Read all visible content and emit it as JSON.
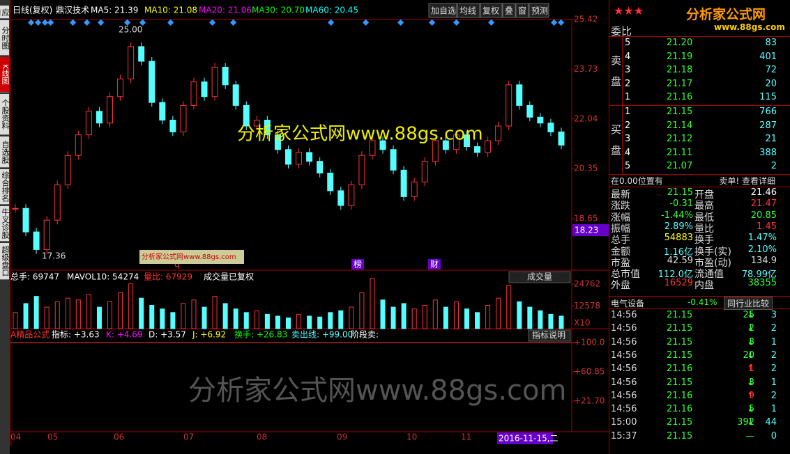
{
  "sidebar": [
    "应用",
    "分时图",
    "K线图",
    "个股资料",
    "自选股",
    "综合排名",
    "牛叉诊股",
    "超级盘口"
  ],
  "toolbar": {
    "period": "日线(复权)",
    "name": "鼎汉技术",
    "ma": [
      "MA5: 21.39",
      "MA10: 21.08",
      "MA20: 21.06",
      "MA30: 20.70",
      "MA60: 20.45"
    ],
    "buttons": [
      "加自选",
      "均线",
      "复权",
      "叠",
      "窗",
      "预测"
    ]
  },
  "price_panel": {
    "ylim": [
      16.9,
      25.42
    ],
    "yticks": [
      25.42,
      23.73,
      22.04,
      20.35,
      18.65
    ],
    "closes": [
      19.0,
      18.2,
      17.6,
      18.6,
      19.8,
      20.8,
      21.5,
      22.3,
      21.9,
      22.8,
      23.4,
      24.5,
      24.0,
      22.6,
      22.0,
      21.6,
      22.5,
      23.3,
      22.8,
      23.8,
      23.2,
      22.5,
      21.8,
      22.0,
      21.5,
      21.0,
      20.5,
      20.9,
      20.6,
      20.2,
      19.6,
      19.1,
      19.8,
      20.8,
      21.3,
      21.0,
      20.3,
      19.4,
      19.9,
      20.6,
      21.3,
      21.0,
      21.5,
      21.1,
      20.9,
      21.3,
      21.8,
      23.2,
      22.5,
      22.1,
      21.9,
      21.6,
      21.15
    ],
    "high_label": "25.00",
    "low_label": "17.36",
    "price_tag": "18.23",
    "markers": [
      "q",
      "榜",
      "财"
    ]
  },
  "watermark": "分析家公式网www.88gs.com",
  "volume_panel": {
    "header": [
      "总手: 69747",
      "MAVOL10: 54274",
      "量比: 67929",
      "成交量已复权"
    ],
    "dropdown": "成交量",
    "ylim": [
      0,
      32600
    ],
    "yticks": [
      24762,
      12578
    ],
    "unit": "X10",
    "volumes": [
      9000,
      14000,
      18000,
      12000,
      15000,
      17000,
      16000,
      19000,
      12000,
      15000,
      20000,
      25000,
      17000,
      13000,
      11000,
      9000,
      14000,
      16000,
      12000,
      18000,
      14000,
      11000,
      9000,
      10000,
      8000,
      7000,
      6000,
      8000,
      7000,
      6500,
      9000,
      10000,
      12000,
      20000,
      28000,
      16000,
      12000,
      14000,
      11000,
      13000,
      16000,
      12000,
      15000,
      11000,
      9000,
      13000,
      17000,
      24000,
      15000,
      12000,
      10000,
      8000,
      7000
    ]
  },
  "indicator_panel": {
    "header": [
      "A精品公式",
      "指标: +3.63",
      "K: +4.69",
      "D: +3.57",
      "J: +6.92",
      "换手: +26.83",
      "卖出线: +99.00",
      "阶段卖:"
    ],
    "help": "指标说明",
    "ylim": [
      -19.3,
      118.6
    ],
    "yticks": [
      {
        "value": 100,
        "label": "+100.0"
      },
      {
        "value": 60.85,
        "label": "+60.85"
      },
      {
        "value": 21.7,
        "label": "+21.70"
      }
    ]
  },
  "date_axis": {
    "months": [
      "04",
      "05",
      "06",
      "07",
      "08",
      "09",
      "10",
      "11"
    ],
    "cursor_date": "2016-11-15,二"
  },
  "logo": {
    "title": "分析家公式网",
    "url": "www.88gs.com"
  },
  "order_book": {
    "title": "委比",
    "sell_label": [
      "卖",
      "盘"
    ],
    "buy_label": [
      "买",
      "盘"
    ],
    "sell": [
      [
        "5",
        "21.20",
        "83"
      ],
      [
        "4",
        "21.19",
        "401"
      ],
      [
        "3",
        "21.18",
        "72"
      ],
      [
        "2",
        "21.17",
        "20"
      ],
      [
        "1",
        "21.16",
        "115"
      ]
    ],
    "buy": [
      [
        "1",
        "21.15",
        "766"
      ],
      [
        "2",
        "21.14",
        "287"
      ],
      [
        "3",
        "21.12",
        "21"
      ],
      [
        "4",
        "21.11",
        "388"
      ],
      [
        "5",
        "21.07",
        "2"
      ]
    ],
    "note": "在0.00位置有",
    "note_link": "卖单! 查看详细"
  },
  "stats": [
    [
      "最新",
      "21.15",
      "开盘",
      "21.46"
    ],
    [
      "涨跌",
      "-0.31",
      "最高",
      "21.47"
    ],
    [
      "涨幅",
      "-1.44%",
      "最低",
      "20.85"
    ],
    [
      "振幅",
      "2.89%",
      "量比",
      "1.45"
    ],
    [
      "总手",
      "54883",
      "换手",
      "1.47%"
    ],
    [
      "金额",
      "1.16亿",
      "换手(实)",
      "2.10%"
    ],
    [
      "市盈",
      "42.59",
      "市盈(动)",
      "134.9"
    ],
    [
      "总市值",
      "112.0亿",
      "流通值",
      "78.99亿"
    ],
    [
      "外盘",
      "16529",
      "内盘",
      "38355"
    ]
  ],
  "industry": {
    "name": "电气设备",
    "change": "-0.41%",
    "button": "同行业比较"
  },
  "ticks": [
    [
      "14:56",
      "21.15",
      "25",
      "↓",
      "3"
    ],
    [
      "14:56",
      "21.15",
      "2",
      "↓",
      "2"
    ],
    [
      "14:56",
      "21.15",
      "3",
      "↓",
      "1"
    ],
    [
      "14:56",
      "21.15",
      "20",
      "↓",
      "2"
    ],
    [
      "14:56",
      "21.16",
      "1",
      "↑",
      "2"
    ],
    [
      "14:56",
      "21.15",
      "3",
      "↓",
      "1"
    ],
    [
      "14:56",
      "21.16",
      "9",
      "↑",
      "2"
    ],
    [
      "14:56",
      "21.16",
      "5",
      "↓",
      "1"
    ],
    [
      "15:00",
      "21.15",
      "392",
      "↓",
      "44"
    ],
    [
      "15:37",
      "21.15",
      "—",
      "0"
    ]
  ]
}
